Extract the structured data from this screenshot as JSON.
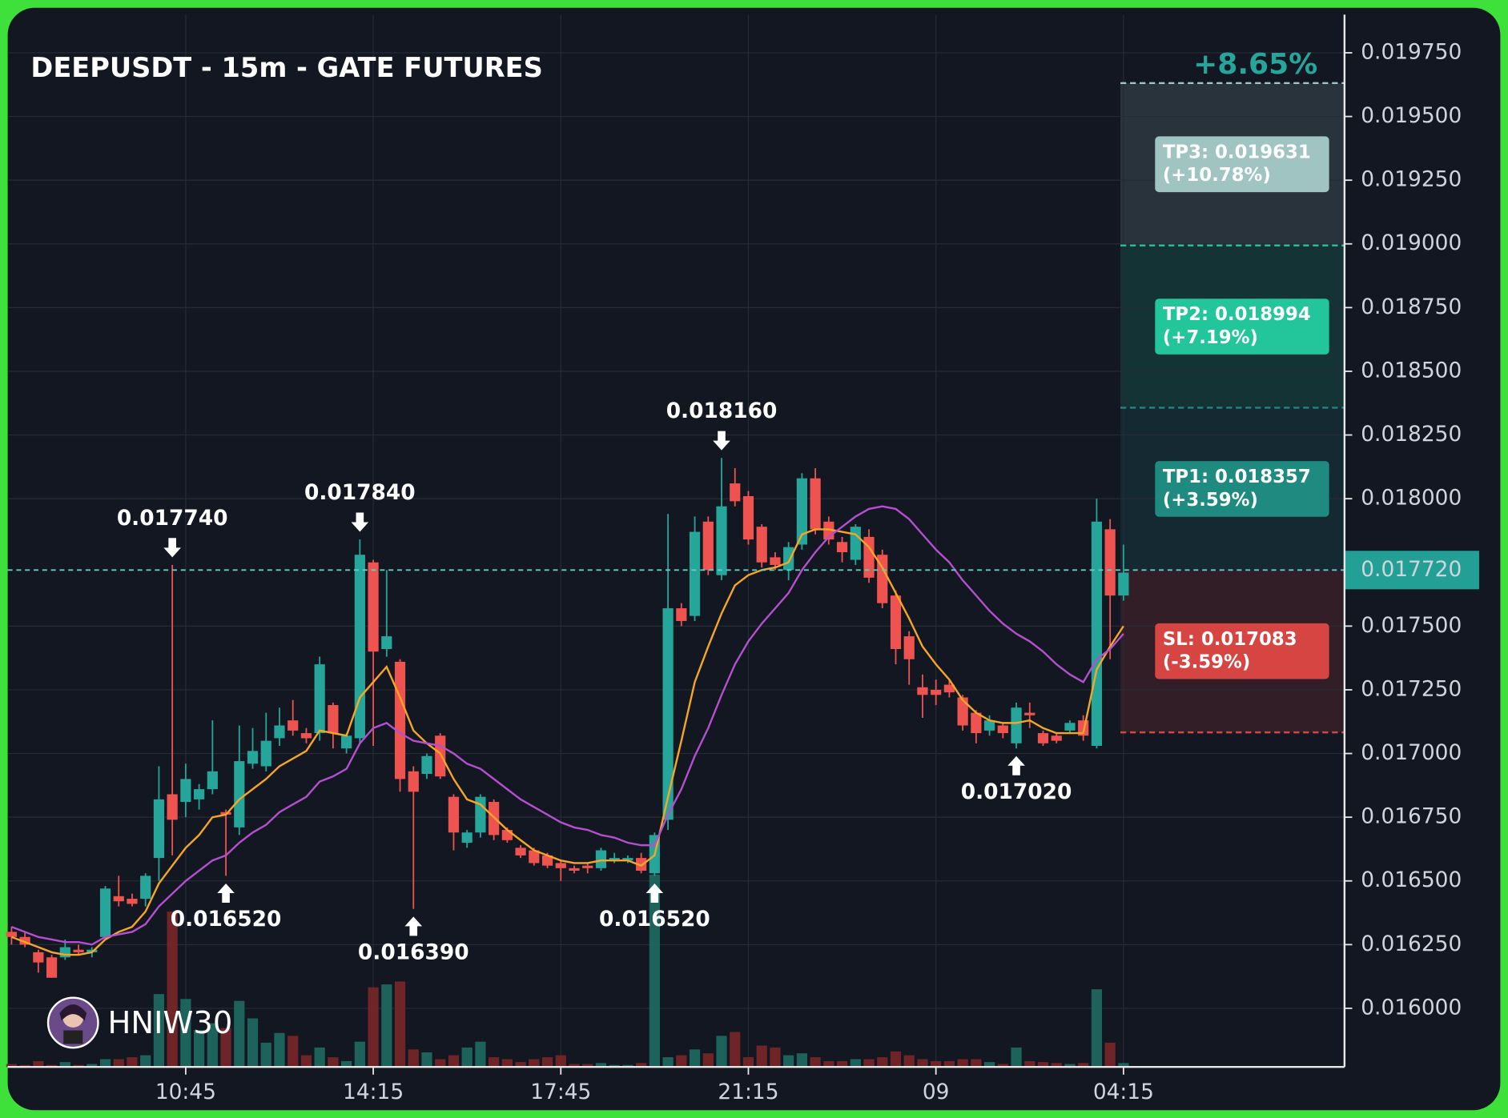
{
  "chart_data": {
    "type": "candlestick",
    "title": "DEEPUSDT - 15m - GATE FUTURES",
    "watermark": "HNIW30",
    "categories": [
      null,
      null,
      null,
      null,
      null,
      null,
      null,
      null,
      null,
      null,
      null,
      null,
      null,
      "10:45",
      null,
      null,
      null,
      null,
      null,
      null,
      null,
      null,
      null,
      null,
      null,
      null,
      null,
      "14:15",
      null,
      null,
      null,
      null,
      null,
      null,
      null,
      null,
      null,
      null,
      null,
      null,
      null,
      "17:45",
      null,
      null,
      null,
      null,
      null,
      null,
      null,
      null,
      null,
      null,
      null,
      null,
      null,
      "21:15",
      null,
      null,
      null,
      null,
      null,
      null,
      null,
      null,
      null,
      null,
      null,
      null,
      null,
      "09",
      null,
      null,
      null,
      null,
      null,
      null,
      null,
      null,
      null,
      null,
      null,
      null,
      null,
      "04:15"
    ],
    "open": [
      0.0163,
      0.01628,
      0.01622,
      0.0162,
      0.0162,
      0.01623,
      0.01622,
      0.01628,
      0.01644,
      0.01643,
      0.01643,
      0.01659,
      0.01684,
      0.01681,
      0.01682,
      0.01686,
      0.01677,
      0.01671,
      0.01696,
      0.01695,
      0.01706,
      0.01713,
      0.01708,
      0.01708,
      0.01719,
      0.01702,
      0.01706,
      0.01775,
      0.01741,
      0.01736,
      0.01693,
      0.01692,
      0.01707,
      0.01683,
      0.01665,
      0.01669,
      0.01681,
      0.0167,
      0.01663,
      0.01662,
      0.0166,
      0.01657,
      0.01655,
      0.01656,
      0.01655,
      0.01658,
      0.01658,
      0.01659,
      0.01653,
      0.01674,
      0.01757,
      0.01754,
      0.01791,
      0.0177,
      0.01806,
      0.01801,
      0.01789,
      0.01777,
      0.01772,
      0.01782,
      0.01808,
      0.01791,
      0.01783,
      0.01776,
      0.01785,
      0.01778,
      0.01762,
      0.01746,
      0.01726,
      0.01725,
      0.01727,
      0.01722,
      0.01716,
      0.01709,
      0.01711,
      0.01704,
      0.01716,
      0.01708,
      0.01707,
      0.01709,
      0.01713,
      0.01703,
      0.01788,
      0.01762
    ],
    "high": [
      0.01632,
      0.0163,
      0.01623,
      0.01621,
      0.01627,
      0.01625,
      0.01624,
      0.01648,
      0.01652,
      0.01645,
      0.01653,
      0.01695,
      0.01774,
      0.01696,
      0.01688,
      0.01713,
      0.01678,
      0.01711,
      0.0171,
      0.01716,
      0.01718,
      0.01721,
      0.0171,
      0.01738,
      0.0172,
      0.01708,
      0.01784,
      0.01776,
      0.01772,
      0.01737,
      0.01695,
      0.017,
      0.01708,
      0.01684,
      0.0167,
      0.01684,
      0.01682,
      0.01671,
      0.01664,
      0.01663,
      0.01661,
      0.01658,
      0.01656,
      0.01657,
      0.01663,
      0.01661,
      0.0166,
      0.01661,
      0.01669,
      0.01794,
      0.01759,
      0.01793,
      0.01793,
      0.01816,
      0.01812,
      0.01803,
      0.0179,
      0.01779,
      0.01783,
      0.0181,
      0.01812,
      0.01793,
      0.01785,
      0.0179,
      0.01788,
      0.0178,
      0.01764,
      0.01748,
      0.01731,
      0.01729,
      0.01729,
      0.01723,
      0.01717,
      0.01715,
      0.01712,
      0.0172,
      0.0172,
      0.01709,
      0.01708,
      0.01713,
      0.01715,
      0.018,
      0.01792,
      0.01782
    ],
    "low": [
      0.01625,
      0.01624,
      0.01614,
      0.01612,
      0.01619,
      0.01621,
      0.0162,
      0.01627,
      0.0164,
      0.0164,
      0.0164,
      0.0165,
      0.0166,
      0.01675,
      0.01678,
      0.01684,
      0.01652,
      0.01668,
      0.01694,
      0.01693,
      0.01703,
      0.01707,
      0.01704,
      0.01705,
      0.01702,
      0.017,
      0.01704,
      0.01703,
      0.01738,
      0.01685,
      0.01639,
      0.0169,
      0.0169,
      0.01662,
      0.01663,
      0.01667,
      0.01666,
      0.01665,
      0.01659,
      0.01656,
      0.01655,
      0.0165,
      0.01653,
      0.01653,
      0.01654,
      0.01657,
      0.01657,
      0.01653,
      0.01652,
      0.0167,
      0.0175,
      0.01752,
      0.0177,
      0.01768,
      0.01797,
      0.01782,
      0.01773,
      0.01772,
      0.01768,
      0.0178,
      0.01786,
      0.01782,
      0.01775,
      0.01774,
      0.01767,
      0.01757,
      0.01735,
      0.01727,
      0.01714,
      0.01719,
      0.01722,
      0.01709,
      0.01704,
      0.01707,
      0.01706,
      0.01702,
      0.0171,
      0.01703,
      0.01704,
      0.01708,
      0.01705,
      0.01702,
      0.01737,
      0.0176
    ],
    "close": [
      0.01628,
      0.01625,
      0.01618,
      0.01612,
      0.01624,
      0.01622,
      0.01623,
      0.01647,
      0.01642,
      0.01641,
      0.01652,
      0.01682,
      0.01674,
      0.0169,
      0.01686,
      0.01693,
      0.01676,
      0.01697,
      0.01701,
      0.01705,
      0.01711,
      0.01709,
      0.01706,
      0.01735,
      0.01708,
      0.01707,
      0.01778,
      0.0174,
      0.01746,
      0.0169,
      0.01685,
      0.01699,
      0.01691,
      0.01669,
      0.01669,
      0.01683,
      0.01668,
      0.01666,
      0.0166,
      0.01657,
      0.01656,
      0.01655,
      0.01654,
      0.01655,
      0.01662,
      0.01659,
      0.01659,
      0.01654,
      0.01668,
      0.01757,
      0.01752,
      0.01787,
      0.01772,
      0.01797,
      0.01799,
      0.01784,
      0.01775,
      0.01774,
      0.01781,
      0.01808,
      0.01788,
      0.01784,
      0.01779,
      0.01789,
      0.01769,
      0.01759,
      0.01741,
      0.01737,
      0.01723,
      0.01723,
      0.01724,
      0.01711,
      0.01708,
      0.01713,
      0.01708,
      0.01718,
      0.01715,
      0.01704,
      0.01705,
      0.01712,
      0.01707,
      0.01791,
      0.01762,
      0.01771
    ],
    "volume": [
      3,
      2,
      6,
      2,
      5,
      2,
      3,
      8,
      8,
      10,
      12,
      75,
      160,
      70,
      38,
      45,
      40,
      68,
      50,
      25,
      35,
      32,
      12,
      20,
      10,
      6,
      26,
      82,
      85,
      88,
      18,
      15,
      8,
      12,
      20,
      26,
      10,
      8,
      5,
      8,
      10,
      12,
      3,
      3,
      4,
      2,
      2,
      4,
      198,
      10,
      12,
      18,
      14,
      32,
      36,
      10,
      22,
      20,
      12,
      14,
      10,
      6,
      6,
      8,
      8,
      10,
      16,
      12,
      8,
      6,
      6,
      8,
      8,
      5,
      3,
      20,
      6,
      5,
      4,
      3,
      4,
      80,
      25,
      4
    ],
    "up_color": "#26a69a",
    "down_color": "#ef5350",
    "lines": [
      {
        "color": "#f5a623",
        "values": [
          0.01628,
          0.01626,
          0.01624,
          0.01622,
          0.01621,
          0.01621,
          0.01622,
          0.01627,
          0.0163,
          0.01632,
          0.01638,
          0.01649,
          0.01656,
          0.01663,
          0.01668,
          0.01675,
          0.01676,
          0.01682,
          0.01686,
          0.0169,
          0.01695,
          0.01698,
          0.01701,
          0.01709,
          0.01708,
          0.01707,
          0.01722,
          0.01728,
          0.01734,
          0.01722,
          0.01709,
          0.01704,
          0.017,
          0.0169,
          0.01682,
          0.0168,
          0.01675,
          0.0167,
          0.01666,
          0.01662,
          0.0166,
          0.01658,
          0.01657,
          0.01657,
          0.01658,
          0.01658,
          0.01658,
          0.01656,
          0.0166,
          0.01683,
          0.01705,
          0.01728,
          0.01742,
          0.01755,
          0.01766,
          0.0177,
          0.01772,
          0.01773,
          0.01775,
          0.01786,
          0.01788,
          0.01788,
          0.01787,
          0.01786,
          0.01781,
          0.01773,
          0.01763,
          0.01753,
          0.01742,
          0.01735,
          0.01729,
          0.01721,
          0.01716,
          0.01713,
          0.01712,
          0.01712,
          0.01713,
          0.0171,
          0.01708,
          0.01708,
          0.01708,
          0.01733,
          0.01742,
          0.0175
        ]
      },
      {
        "color": "#b44fcf",
        "values": [
          0.01632,
          0.0163,
          0.01628,
          0.01627,
          0.01626,
          0.01626,
          0.01625,
          0.01628,
          0.01629,
          0.0163,
          0.01633,
          0.0164,
          0.01645,
          0.0165,
          0.01654,
          0.01658,
          0.0166,
          0.01665,
          0.01669,
          0.01672,
          0.01677,
          0.0168,
          0.01683,
          0.01689,
          0.01691,
          0.01694,
          0.01704,
          0.0171,
          0.01712,
          0.01708,
          0.01705,
          0.01704,
          0.01703,
          0.017,
          0.01696,
          0.01694,
          0.0169,
          0.01686,
          0.01682,
          0.01679,
          0.01676,
          0.01673,
          0.01671,
          0.0167,
          0.01668,
          0.01667,
          0.01665,
          0.01664,
          0.01664,
          0.01676,
          0.01686,
          0.01699,
          0.0171,
          0.01723,
          0.01735,
          0.01744,
          0.01751,
          0.01757,
          0.01763,
          0.01772,
          0.01779,
          0.01785,
          0.01789,
          0.01793,
          0.01796,
          0.01797,
          0.01796,
          0.01792,
          0.01786,
          0.0178,
          0.01775,
          0.01768,
          0.01762,
          0.01756,
          0.01751,
          0.01747,
          0.01744,
          0.0174,
          0.01735,
          0.01731,
          0.01728,
          0.01737,
          0.01741,
          0.01747
        ]
      }
    ],
    "annotations": [
      {
        "label": "0.017740",
        "value": 0.01774,
        "index": 12,
        "direction": "down"
      },
      {
        "label": "0.016520",
        "value": 0.01652,
        "index": 16,
        "direction": "up"
      },
      {
        "label": "0.017840",
        "value": 0.01784,
        "index": 26,
        "direction": "down"
      },
      {
        "label": "0.016390",
        "value": 0.01639,
        "index": 30,
        "direction": "up"
      },
      {
        "label": "0.016520",
        "value": 0.01652,
        "index": 48,
        "direction": "up"
      },
      {
        "label": "0.018160",
        "value": 0.01816,
        "index": 53,
        "direction": "down"
      },
      {
        "label": "0.017020",
        "value": 0.01702,
        "index": 75,
        "direction": "up"
      }
    ],
    "entry": {
      "value": 0.01772,
      "label": "0.017720"
    },
    "gain_label": "+8.65%",
    "levels": [
      {
        "label": "TP1: 0.018357",
        "change": "(+3.59%)",
        "value": 0.018357,
        "color": "#1f8a80"
      },
      {
        "label": "TP2: 0.018994",
        "change": "(+7.19%)",
        "value": 0.018994,
        "color": "#22c69a"
      },
      {
        "label": "TP3: 0.019631",
        "change": "(+10.78%)",
        "value": 0.019631,
        "color": "#9fc4c1"
      },
      {
        "label": "SL: 0.017083",
        "change": "(-3.59%)",
        "value": 0.017083,
        "color": "#d64541"
      }
    ],
    "ylim": [
      0.01577,
      0.0199
    ],
    "yticks": [
      {
        "value": 0.016,
        "label": "0.016000"
      },
      {
        "value": 0.01625,
        "label": "0.016250"
      },
      {
        "value": 0.0165,
        "label": "0.016500"
      },
      {
        "value": 0.01675,
        "label": "0.016750"
      },
      {
        "value": 0.017,
        "label": "0.017000"
      },
      {
        "value": 0.01725,
        "label": "0.017250"
      },
      {
        "value": 0.0175,
        "label": "0.017500"
      },
      {
        "value": 0.018,
        "label": "0.018000"
      },
      {
        "value": 0.01825,
        "label": "0.018250"
      },
      {
        "value": 0.0185,
        "label": "0.018500"
      },
      {
        "value": 0.01875,
        "label": "0.018750"
      },
      {
        "value": 0.019,
        "label": "0.019000"
      },
      {
        "value": 0.01925,
        "label": "0.019250"
      },
      {
        "value": 0.0195,
        "label": "0.019500"
      },
      {
        "value": 0.01975,
        "label": "0.019750"
      }
    ],
    "grid": true
  }
}
